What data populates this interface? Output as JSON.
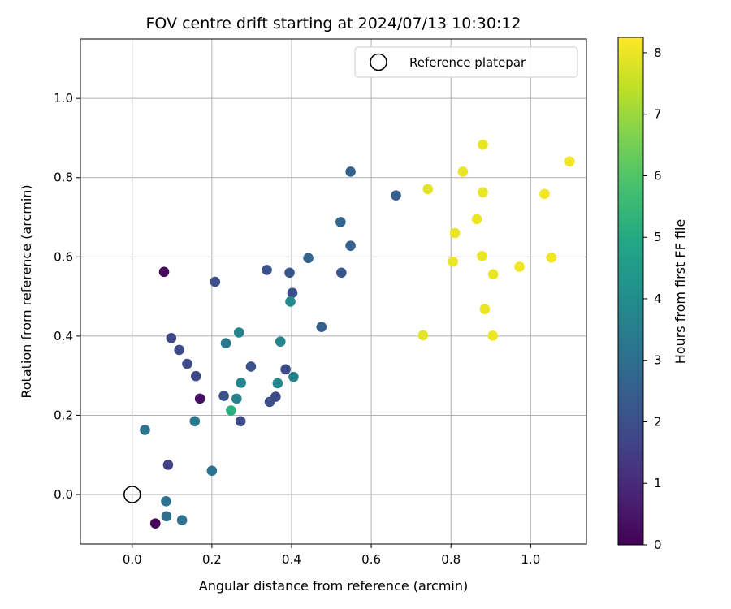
{
  "chart_data": {
    "type": "scatter",
    "title": "FOV centre drift starting at 2024/07/13 10:30:12",
    "xlabel": "Angular distance from reference (arcmin)",
    "ylabel": "Rotation from reference (arcmin)",
    "xlim": [
      -0.13,
      1.14
    ],
    "ylim": [
      -0.125,
      1.15
    ],
    "grid": true,
    "legend": {
      "placement": "top-right",
      "entries": [
        {
          "label": "Reference platepar",
          "marker": "open-circle",
          "color": "#000000"
        }
      ]
    },
    "x_ticks": [
      {
        "value": 0.0,
        "label": "0.0"
      },
      {
        "value": 0.2,
        "label": "0.2"
      },
      {
        "value": 0.4,
        "label": "0.4"
      },
      {
        "value": 0.6,
        "label": "0.6"
      },
      {
        "value": 0.8,
        "label": "0.8"
      },
      {
        "value": 1.0,
        "label": "1.0"
      }
    ],
    "y_ticks": [
      {
        "value": 0.0,
        "label": "0.0"
      },
      {
        "value": 0.2,
        "label": "0.2"
      },
      {
        "value": 0.4,
        "label": "0.4"
      },
      {
        "value": 0.6,
        "label": "0.6"
      },
      {
        "value": 0.8,
        "label": "0.8"
      },
      {
        "value": 1.0,
        "label": "1.0"
      }
    ],
    "colorbar": {
      "label": "Hours from first FF file",
      "colormap": "viridis",
      "range": [
        0,
        8.25
      ],
      "ticks": [
        {
          "value": 0,
          "label": "0"
        },
        {
          "value": 1,
          "label": "1"
        },
        {
          "value": 2,
          "label": "2"
        },
        {
          "value": 3,
          "label": "3"
        },
        {
          "value": 4,
          "label": "4"
        },
        {
          "value": 5,
          "label": "5"
        },
        {
          "value": 6,
          "label": "6"
        },
        {
          "value": 7,
          "label": "7"
        },
        {
          "value": 8,
          "label": "8"
        }
      ]
    },
    "reference_point": {
      "x": 0.0,
      "y": 0.0
    },
    "points": [
      {
        "x": 0.058,
        "y": -0.073,
        "hours": 0.1
      },
      {
        "x": 0.08,
        "y": 0.562,
        "hours": 0.2
      },
      {
        "x": 0.17,
        "y": 0.242,
        "hours": 0.3
      },
      {
        "x": 0.09,
        "y": 0.075,
        "hours": 1.6
      },
      {
        "x": 0.098,
        "y": 0.395,
        "hours": 1.8
      },
      {
        "x": 0.118,
        "y": 0.365,
        "hours": 1.9
      },
      {
        "x": 0.138,
        "y": 0.33,
        "hours": 1.9
      },
      {
        "x": 0.16,
        "y": 0.299,
        "hours": 1.8
      },
      {
        "x": 0.208,
        "y": 0.537,
        "hours": 2.0
      },
      {
        "x": 0.23,
        "y": 0.249,
        "hours": 2.1
      },
      {
        "x": 0.272,
        "y": 0.185,
        "hours": 1.9
      },
      {
        "x": 0.298,
        "y": 0.323,
        "hours": 2.1
      },
      {
        "x": 0.338,
        "y": 0.567,
        "hours": 2.1
      },
      {
        "x": 0.345,
        "y": 0.234,
        "hours": 2.0
      },
      {
        "x": 0.36,
        "y": 0.247,
        "hours": 1.9
      },
      {
        "x": 0.385,
        "y": 0.316,
        "hours": 1.9
      },
      {
        "x": 0.395,
        "y": 0.56,
        "hours": 2.2
      },
      {
        "x": 0.402,
        "y": 0.509,
        "hours": 2.0
      },
      {
        "x": 0.442,
        "y": 0.597,
        "hours": 2.6
      },
      {
        "x": 0.475,
        "y": 0.423,
        "hours": 2.5
      },
      {
        "x": 0.523,
        "y": 0.688,
        "hours": 2.7
      },
      {
        "x": 0.525,
        "y": 0.56,
        "hours": 2.2
      },
      {
        "x": 0.548,
        "y": 0.815,
        "hours": 2.6
      },
      {
        "x": 0.548,
        "y": 0.628,
        "hours": 2.5
      },
      {
        "x": 0.662,
        "y": 0.755,
        "hours": 2.4
      },
      {
        "x": 0.032,
        "y": 0.163,
        "hours": 3.2
      },
      {
        "x": 0.085,
        "y": -0.017,
        "hours": 3.1
      },
      {
        "x": 0.086,
        "y": -0.055,
        "hours": 3.0
      },
      {
        "x": 0.125,
        "y": -0.065,
        "hours": 3.1
      },
      {
        "x": 0.157,
        "y": 0.185,
        "hours": 3.3
      },
      {
        "x": 0.2,
        "y": 0.06,
        "hours": 3.1
      },
      {
        "x": 0.235,
        "y": 0.382,
        "hours": 3.3
      },
      {
        "x": 0.262,
        "y": 0.242,
        "hours": 3.6
      },
      {
        "x": 0.268,
        "y": 0.409,
        "hours": 3.7
      },
      {
        "x": 0.273,
        "y": 0.282,
        "hours": 3.8
      },
      {
        "x": 0.365,
        "y": 0.281,
        "hours": 3.8
      },
      {
        "x": 0.372,
        "y": 0.386,
        "hours": 3.8
      },
      {
        "x": 0.397,
        "y": 0.487,
        "hours": 3.9
      },
      {
        "x": 0.405,
        "y": 0.297,
        "hours": 3.7
      },
      {
        "x": 0.248,
        "y": 0.212,
        "hours": 5.2
      },
      {
        "x": 0.73,
        "y": 0.402,
        "hours": 7.9
      },
      {
        "x": 0.742,
        "y": 0.771,
        "hours": 7.9
      },
      {
        "x": 0.805,
        "y": 0.588,
        "hours": 8.0
      },
      {
        "x": 0.81,
        "y": 0.66,
        "hours": 8.0
      },
      {
        "x": 0.83,
        "y": 0.815,
        "hours": 8.0
      },
      {
        "x": 0.865,
        "y": 0.695,
        "hours": 8.0
      },
      {
        "x": 0.878,
        "y": 0.602,
        "hours": 8.0
      },
      {
        "x": 0.88,
        "y": 0.883,
        "hours": 8.0
      },
      {
        "x": 0.88,
        "y": 0.763,
        "hours": 8.0
      },
      {
        "x": 0.885,
        "y": 0.468,
        "hours": 8.0
      },
      {
        "x": 0.905,
        "y": 0.401,
        "hours": 8.0
      },
      {
        "x": 0.906,
        "y": 0.556,
        "hours": 8.0
      },
      {
        "x": 0.972,
        "y": 0.575,
        "hours": 8.1
      },
      {
        "x": 1.035,
        "y": 0.759,
        "hours": 8.1
      },
      {
        "x": 1.052,
        "y": 0.598,
        "hours": 8.1
      },
      {
        "x": 1.098,
        "y": 0.841,
        "hours": 8.1
      }
    ]
  }
}
